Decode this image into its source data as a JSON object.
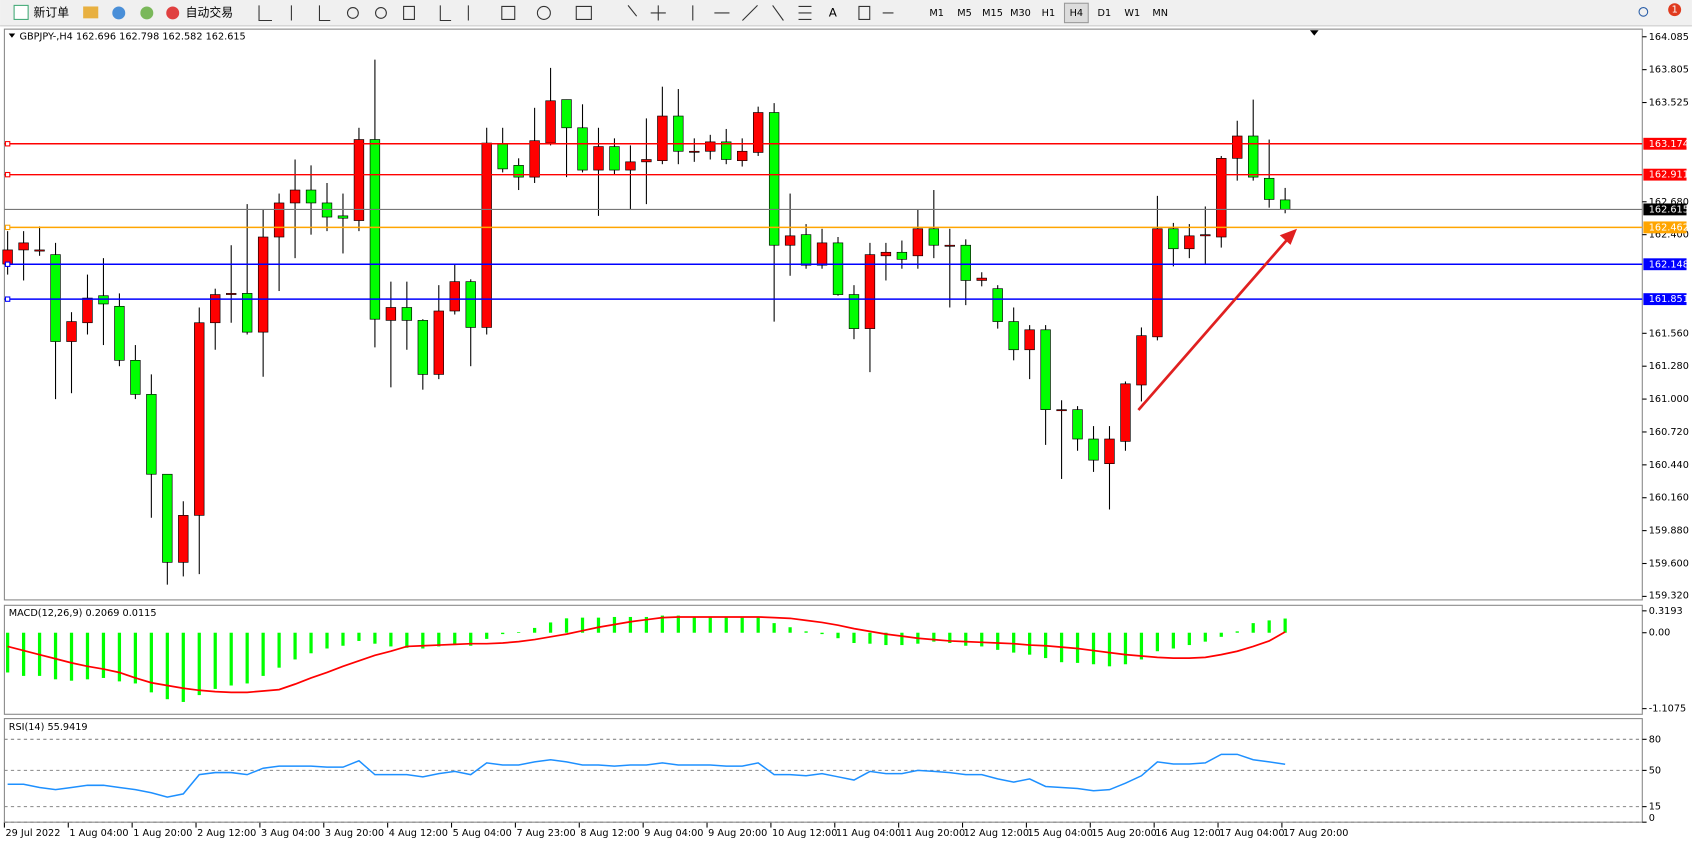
{
  "toolbar": {
    "new_order": "新订单",
    "auto_trading": "自动交易",
    "timeframes": [
      "M1",
      "M5",
      "M15",
      "M30",
      "H1",
      "H4",
      "D1",
      "W1",
      "MN"
    ],
    "active_timeframe": "H4",
    "notifications": 1
  },
  "chart_data": [
    {
      "type": "candlestick",
      "symbol": "GBPJPY-,H4",
      "up_color": "#ff0000",
      "down_color": "#00ff00",
      "categories": [
        "29 Jul 2022",
        null,
        null,
        null,
        "1 Aug 04:00",
        null,
        null,
        null,
        "1 Aug 20:00",
        null,
        null,
        null,
        "2 Aug 12:00",
        null,
        null,
        null,
        "3 Aug 04:00",
        null,
        null,
        null,
        "3 Aug 20:00",
        null,
        null,
        null,
        "4 Aug 12:00",
        null,
        null,
        null,
        "5 Aug 04:00",
        null,
        null,
        null,
        "7 Aug 23:00",
        null,
        null,
        null,
        "8 Aug 12:00",
        null,
        null,
        null,
        "9 Aug 04:00",
        null,
        null,
        null,
        "9 Aug 20:00",
        null,
        null,
        null,
        "10 Aug 12:00",
        null,
        null,
        null,
        "11 Aug 04:00",
        null,
        null,
        null,
        "11 Aug 20:00",
        null,
        null,
        null,
        "12 Aug 12:00",
        null,
        null,
        null,
        "15 Aug 04:00",
        null,
        null,
        null,
        "15 Aug 20:00",
        null,
        null,
        null,
        "16 Aug 12:00",
        null,
        null,
        null,
        "17 Aug 04:00",
        null,
        null,
        null,
        "17 Aug 20:00"
      ],
      "open": [
        162.15,
        162.27,
        162.26,
        162.23,
        161.49,
        161.65,
        161.88,
        161.79,
        161.33,
        161.04,
        160.36,
        159.61,
        160.01,
        161.65,
        161.89,
        161.9,
        161.57,
        162.38,
        162.67,
        162.78,
        162.67,
        162.56,
        162.52,
        163.21,
        161.67,
        161.78,
        161.67,
        161.21,
        161.75,
        162.0,
        161.61,
        163.17,
        162.99,
        162.89,
        163.18,
        163.55,
        163.31,
        162.95,
        163.15,
        162.95,
        163.02,
        163.03,
        163.41,
        163.11,
        163.11,
        163.19,
        163.03,
        163.1,
        163.44,
        162.31,
        162.4,
        162.14,
        162.33,
        161.89,
        161.6,
        162.22,
        162.25,
        162.22,
        162.45,
        162.31,
        162.31,
        162.01,
        161.94,
        161.66,
        161.42,
        161.59,
        160.91,
        160.91,
        160.66,
        160.45,
        160.64,
        161.12,
        161.53,
        162.45,
        162.28,
        162.39,
        162.38,
        163.05,
        163.24,
        162.88,
        162.696
      ],
      "high": [
        162.43,
        162.43,
        162.47,
        162.33,
        161.74,
        162.06,
        162.2,
        161.9,
        161.46,
        161.21,
        160.36,
        160.13,
        161.78,
        161.94,
        162.31,
        162.66,
        162.61,
        162.75,
        163.04,
        162.99,
        162.84,
        162.75,
        163.31,
        163.89,
        162.0,
        162.0,
        161.68,
        161.97,
        162.15,
        162.02,
        163.31,
        163.31,
        163.05,
        163.48,
        163.82,
        163.55,
        163.51,
        163.31,
        163.22,
        163.16,
        163.39,
        163.66,
        163.64,
        163.22,
        163.25,
        163.3,
        163.22,
        163.49,
        163.52,
        162.75,
        162.49,
        162.45,
        162.38,
        161.97,
        162.33,
        162.33,
        162.35,
        162.61,
        162.78,
        162.45,
        162.36,
        162.08,
        161.97,
        161.78,
        161.63,
        161.63,
        160.99,
        160.94,
        160.77,
        160.77,
        161.15,
        161.61,
        162.73,
        162.5,
        162.49,
        162.64,
        163.07,
        163.37,
        163.55,
        163.21,
        162.798
      ],
      "low": [
        162.06,
        162.01,
        162.22,
        161.0,
        161.05,
        161.55,
        161.46,
        161.28,
        161.0,
        159.99,
        159.42,
        159.49,
        159.51,
        161.42,
        161.65,
        161.55,
        161.19,
        161.92,
        162.2,
        162.4,
        162.43,
        162.24,
        162.43,
        161.44,
        161.1,
        161.42,
        161.08,
        161.17,
        161.72,
        161.28,
        161.55,
        162.93,
        162.78,
        162.84,
        163.16,
        162.89,
        162.93,
        162.56,
        162.91,
        162.61,
        162.66,
        163.0,
        163.0,
        163.02,
        163.04,
        163.0,
        162.98,
        163.07,
        161.66,
        162.05,
        162.11,
        162.11,
        161.88,
        161.51,
        161.23,
        162.01,
        162.11,
        162.11,
        162.2,
        161.78,
        161.8,
        161.96,
        161.6,
        161.33,
        161.17,
        160.61,
        160.32,
        160.56,
        160.38,
        160.06,
        160.56,
        160.98,
        161.5,
        162.13,
        162.2,
        162.15,
        162.29,
        162.86,
        162.86,
        162.63,
        162.582
      ],
      "close": [
        162.27,
        162.33,
        162.27,
        161.49,
        161.66,
        161.86,
        161.81,
        161.33,
        161.04,
        160.36,
        159.61,
        160.01,
        161.65,
        161.89,
        161.9,
        161.57,
        162.38,
        162.67,
        162.78,
        162.67,
        162.55,
        162.54,
        163.21,
        161.68,
        161.78,
        161.67,
        161.21,
        161.75,
        162.0,
        161.61,
        163.18,
        162.96,
        162.89,
        163.2,
        163.54,
        163.31,
        162.95,
        163.15,
        162.95,
        163.02,
        163.04,
        163.41,
        163.11,
        163.11,
        163.19,
        163.04,
        163.11,
        163.44,
        162.31,
        162.39,
        162.14,
        162.33,
        161.89,
        161.6,
        162.23,
        162.25,
        162.19,
        162.45,
        162.31,
        162.31,
        162.01,
        162.03,
        161.66,
        161.42,
        161.59,
        160.91,
        160.91,
        160.66,
        160.48,
        160.66,
        161.13,
        161.54,
        162.45,
        162.28,
        162.39,
        162.4,
        163.05,
        163.24,
        162.89,
        162.7,
        162.615
      ],
      "ylim": [
        159.29,
        164.15
      ],
      "yticks": [
        164.085,
        163.805,
        163.525,
        {
          "value": 162.68,
          "label": "162.680"
        },
        {
          "value": 162.4,
          "label": "162.400"
        },
        {
          "value": 161.56,
          "label": "161.560"
        },
        {
          "value": 161.28,
          "label": "161.280"
        },
        {
          "value": 161,
          "label": "161.000"
        },
        {
          "value": 160.72,
          "label": "160.720"
        },
        {
          "value": 160.44,
          "label": "160.440"
        },
        {
          "value": 160.16,
          "label": "160.160"
        },
        {
          "value": 159.88,
          "label": "159.880"
        },
        {
          "value": 159.6,
          "label": "159.600"
        },
        {
          "value": 159.32,
          "label": "159.320"
        }
      ],
      "levels": [
        {
          "value": 163.174,
          "color": "#ff0000"
        },
        {
          "value": 162.911,
          "color": "#ff0000"
        },
        {
          "value": 162.462,
          "color": "#ffa500"
        },
        {
          "value": 162.148,
          "color": "#0000ff"
        },
        {
          "value": 161.851,
          "color": "#0000ff"
        }
      ]
    },
    {
      "type": "macd",
      "title": "MACD(12,26,9)",
      "histogram_color": "#00ff00",
      "signal_color": "#ff0000",
      "histogram": [
        -0.58,
        -0.63,
        -0.63,
        -0.68,
        -0.7,
        -0.68,
        -0.66,
        -0.71,
        -0.74,
        -0.87,
        -0.97,
        -1.01,
        -0.91,
        -0.82,
        -0.77,
        -0.74,
        -0.63,
        -0.51,
        -0.39,
        -0.3,
        -0.23,
        -0.19,
        -0.12,
        -0.16,
        -0.2,
        -0.22,
        -0.23,
        -0.2,
        -0.18,
        -0.19,
        -0.09,
        -0.02,
        0.01,
        0.07,
        0.15,
        0.21,
        0.22,
        0.22,
        0.23,
        0.23,
        0.23,
        0.25,
        0.25,
        0.23,
        0.23,
        0.23,
        0.22,
        0.23,
        0.14,
        0.08,
        0.02,
        -0.02,
        -0.08,
        -0.15,
        -0.16,
        -0.18,
        -0.18,
        -0.16,
        -0.13,
        -0.15,
        -0.19,
        -0.2,
        -0.25,
        -0.29,
        -0.32,
        -0.37,
        -0.43,
        -0.44,
        -0.46,
        -0.49,
        -0.46,
        -0.39,
        -0.27,
        -0.23,
        -0.18,
        -0.13,
        -0.06,
        0.02,
        0.14,
        0.18,
        0.2069
      ],
      "signal": [
        -0.2,
        -0.26,
        -0.32,
        -0.38,
        -0.44,
        -0.49,
        -0.53,
        -0.58,
        -0.66,
        -0.73,
        -0.77,
        -0.81,
        -0.84,
        -0.86,
        -0.87,
        -0.87,
        -0.85,
        -0.83,
        -0.75,
        -0.66,
        -0.58,
        -0.49,
        -0.41,
        -0.33,
        -0.27,
        -0.2,
        -0.19,
        -0.18,
        -0.17,
        -0.16,
        -0.16,
        -0.15,
        -0.13,
        -0.1,
        -0.06,
        -0.02,
        0.03,
        0.08,
        0.12,
        0.16,
        0.19,
        0.22,
        0.23,
        0.23,
        0.23,
        0.23,
        0.23,
        0.23,
        0.22,
        0.21,
        0.18,
        0.15,
        0.11,
        0.06,
        0.02,
        -0.02,
        -0.05,
        -0.08,
        -0.1,
        -0.12,
        -0.13,
        -0.14,
        -0.15,
        -0.16,
        -0.18,
        -0.19,
        -0.21,
        -0.23,
        -0.26,
        -0.29,
        -0.32,
        -0.34,
        -0.36,
        -0.37,
        -0.37,
        -0.36,
        -0.32,
        -0.27,
        -0.2,
        -0.12,
        0.0115
      ],
      "ylim": [
        -1.19,
        0.4
      ],
      "yticks": [
        0.3193,
        {
          "value": 0,
          "label": "0.00"
        },
        -1.1075
      ]
    },
    {
      "type": "line",
      "title": "RSI(14)",
      "color": "#1e90ff",
      "grid": "dashed",
      "values": [
        36.6,
        36.6,
        33.5,
        31.4,
        33.5,
        35.6,
        35.6,
        33.5,
        31.4,
        28.4,
        24.2,
        27.3,
        45.9,
        47.9,
        47.9,
        45.9,
        52.1,
        54.1,
        54.1,
        54.1,
        53.1,
        53.1,
        59.3,
        45.9,
        45.9,
        45.9,
        43.8,
        46.9,
        49.0,
        45.9,
        57.2,
        55.2,
        55.2,
        58.2,
        60.3,
        58.2,
        55.2,
        55.2,
        54.1,
        55.2,
        55.2,
        57.2,
        55.2,
        55.2,
        55.2,
        54.1,
        54.1,
        57.2,
        45.9,
        45.9,
        44.8,
        46.9,
        43.8,
        40.7,
        49.0,
        46.9,
        46.9,
        50.0,
        49.0,
        47.9,
        45.9,
        45.9,
        41.8,
        38.7,
        41.8,
        34.5,
        33.5,
        32.5,
        30.4,
        31.4,
        37.6,
        44.8,
        58.2,
        56.2,
        56.2,
        57.2,
        65.5,
        65.5,
        60.3,
        58.2,
        55.9419
      ],
      "ylim": [
        0,
        100
      ],
      "yticks": [
        0,
        15,
        50,
        80
      ]
    }
  ]
}
